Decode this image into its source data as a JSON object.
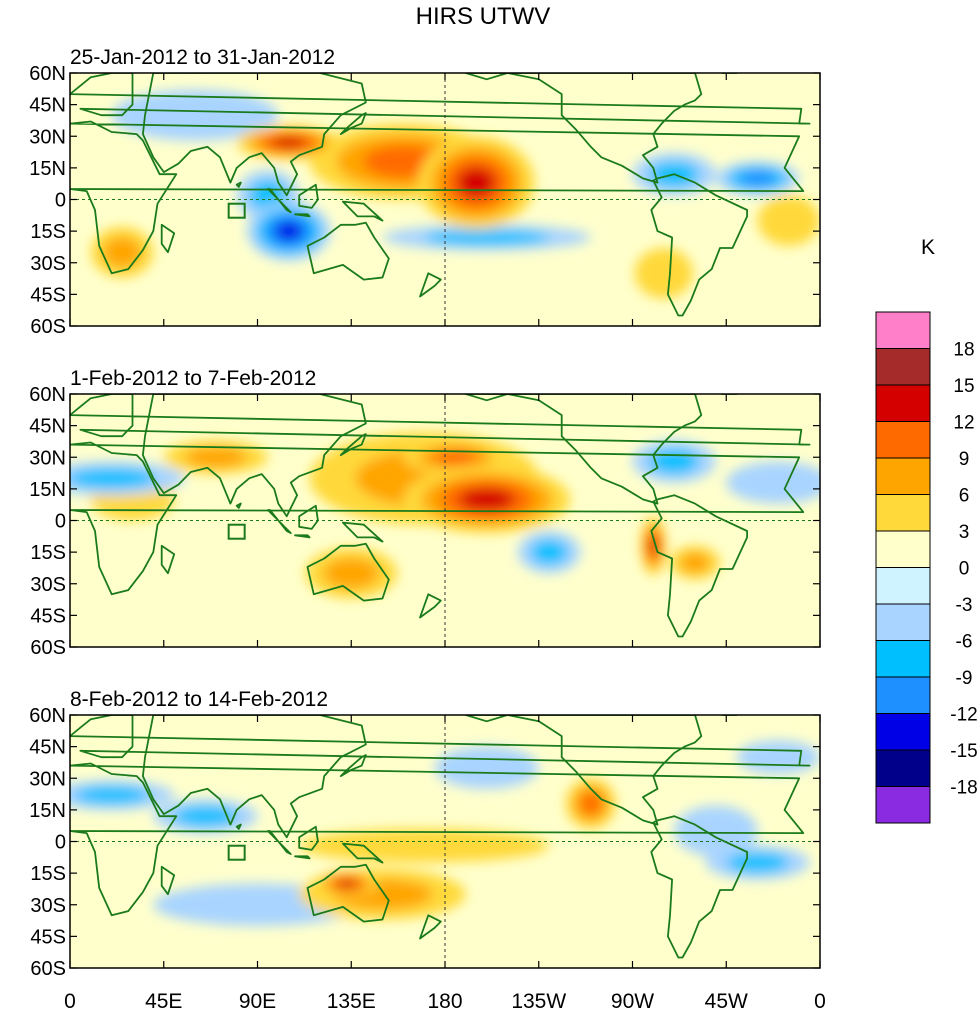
{
  "title": "HIRS UTWV",
  "colorbar": {
    "unit_label": "K",
    "levels": [
      "18",
      "15",
      "12",
      "9",
      "6",
      "3",
      "0",
      "-3",
      "-6",
      "-9",
      "-12",
      "-15",
      "-18"
    ],
    "colors": [
      "#ff7fc8",
      "#a52a2a",
      "#d40000",
      "#ff6a00",
      "#ffa500",
      "#ffd93a",
      "#ffffcc",
      "#d0f4ff",
      "#a8d4ff",
      "#00bfff",
      "#1e90ff",
      "#0000e6",
      "#00008b",
      "#8a2be2"
    ]
  },
  "axes": {
    "lat_labels": [
      "60N",
      "45N",
      "30N",
      "15N",
      "0",
      "15S",
      "30S",
      "45S",
      "60S"
    ],
    "lon_labels": [
      "0",
      "45E",
      "90E",
      "135E",
      "180",
      "135W",
      "90W",
      "45W",
      "0"
    ]
  },
  "panels": [
    {
      "subtitle": "25-Jan-2012 to 31-Jan-2012",
      "anomalies": [
        {
          "lon": 195,
          "lat": 8,
          "rx": 28,
          "ry": 22,
          "value": 14
        },
        {
          "lon": 160,
          "lat": 18,
          "rx": 45,
          "ry": 18,
          "value": 9
        },
        {
          "lon": 105,
          "lat": 27,
          "rx": 25,
          "ry": 8,
          "value": 14
        },
        {
          "lon": 105,
          "lat": -15,
          "rx": 20,
          "ry": 14,
          "value": -14
        },
        {
          "lon": 95,
          "lat": 2,
          "rx": 15,
          "ry": 12,
          "value": -8
        },
        {
          "lon": 200,
          "lat": -18,
          "rx": 50,
          "ry": 6,
          "value": -7
        },
        {
          "lon": 25,
          "lat": -25,
          "rx": 15,
          "ry": 12,
          "value": 7
        },
        {
          "lon": 290,
          "lat": 12,
          "rx": 20,
          "ry": 10,
          "value": -7
        },
        {
          "lon": 330,
          "lat": 10,
          "rx": 20,
          "ry": 8,
          "value": -9
        },
        {
          "lon": 285,
          "lat": -35,
          "rx": 14,
          "ry": 12,
          "value": 5
        },
        {
          "lon": 345,
          "lat": -10,
          "rx": 15,
          "ry": 12,
          "value": 5
        },
        {
          "lon": 60,
          "lat": 40,
          "rx": 40,
          "ry": 12,
          "value": -3
        }
      ]
    },
    {
      "subtitle": "1-Feb-2012 to 7-Feb-2012",
      "anomalies": [
        {
          "lon": 200,
          "lat": 10,
          "rx": 40,
          "ry": 16,
          "value": 14
        },
        {
          "lon": 185,
          "lat": 30,
          "rx": 25,
          "ry": 8,
          "value": 11
        },
        {
          "lon": 170,
          "lat": 20,
          "rx": 55,
          "ry": 22,
          "value": 7
        },
        {
          "lon": 280,
          "lat": -12,
          "rx": 6,
          "ry": 14,
          "value": 12
        },
        {
          "lon": 300,
          "lat": -20,
          "rx": 12,
          "ry": 8,
          "value": 8
        },
        {
          "lon": 135,
          "lat": -25,
          "rx": 22,
          "ry": 12,
          "value": 7
        },
        {
          "lon": 30,
          "lat": 10,
          "rx": 20,
          "ry": 10,
          "value": 4
        },
        {
          "lon": 20,
          "lat": 20,
          "rx": 35,
          "ry": 8,
          "value": -6
        },
        {
          "lon": 70,
          "lat": 30,
          "rx": 25,
          "ry": 8,
          "value": 6
        },
        {
          "lon": 230,
          "lat": -15,
          "rx": 15,
          "ry": 10,
          "value": -7
        },
        {
          "lon": 290,
          "lat": 28,
          "rx": 20,
          "ry": 10,
          "value": -7
        },
        {
          "lon": 340,
          "lat": 18,
          "rx": 25,
          "ry": 10,
          "value": -3
        }
      ]
    },
    {
      "subtitle": "8-Feb-2012 to 14-Feb-2012",
      "anomalies": [
        {
          "lon": 133,
          "lat": -20,
          "rx": 15,
          "ry": 6,
          "value": 14
        },
        {
          "lon": 150,
          "lat": -25,
          "rx": 40,
          "ry": 12,
          "value": 6
        },
        {
          "lon": 250,
          "lat": 18,
          "rx": 12,
          "ry": 12,
          "value": 10
        },
        {
          "lon": 170,
          "lat": -2,
          "rx": 60,
          "ry": 8,
          "value": 4
        },
        {
          "lon": 65,
          "lat": 12,
          "rx": 25,
          "ry": 8,
          "value": -7
        },
        {
          "lon": 20,
          "lat": 22,
          "rx": 30,
          "ry": 7,
          "value": -6
        },
        {
          "lon": 330,
          "lat": -10,
          "rx": 25,
          "ry": 8,
          "value": -8
        },
        {
          "lon": 90,
          "lat": -30,
          "rx": 50,
          "ry": 10,
          "value": -4
        },
        {
          "lon": 200,
          "lat": 35,
          "rx": 25,
          "ry": 10,
          "value": -5
        },
        {
          "lon": 310,
          "lat": 5,
          "rx": 20,
          "ry": 12,
          "value": -3
        },
        {
          "lon": 340,
          "lat": 40,
          "rx": 20,
          "ry": 8,
          "value": -3
        }
      ]
    }
  ]
}
